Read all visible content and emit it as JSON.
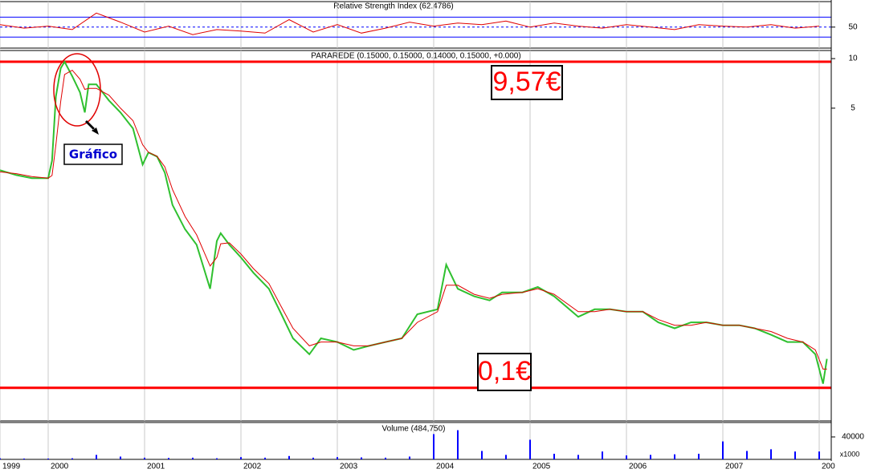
{
  "chart_data": [
    {
      "type": "line",
      "title": "Relative Strength Index (62.4786)",
      "x": [
        1999.5,
        1999.75,
        2000,
        2000.25,
        2000.5,
        2000.75,
        2001,
        2001.25,
        2001.5,
        2001.75,
        2002,
        2002.25,
        2002.5,
        2002.75,
        2003,
        2003.25,
        2003.5,
        2003.75,
        2004,
        2004.25,
        2004.5,
        2004.75,
        2005,
        2005.25,
        2005.5,
        2005.75,
        2006,
        2006.25,
        2006.5,
        2006.75,
        2007,
        2007.25,
        2007.5,
        2007.75,
        2008
      ],
      "series": [
        {
          "color": "#e00000",
          "values": [
            55,
            48,
            52,
            45,
            78,
            60,
            40,
            52,
            35,
            45,
            42,
            38,
            65,
            40,
            55,
            38,
            48,
            60,
            52,
            58,
            55,
            62,
            50,
            58,
            52,
            48,
            55,
            50,
            45,
            55,
            52,
            50,
            55,
            48,
            52
          ]
        }
      ],
      "xlim": [
        1999.5,
        2008.125
      ],
      "ylim": [
        8,
        101
      ],
      "yticks": [
        50
      ],
      "levels": [
        70,
        30
      ],
      "level_color": "#0000ff"
    },
    {
      "type": "line",
      "title": "PARAREDE (0.15000, 0.15000, 0.14000, 0.15000, +0.000)",
      "log_scale": true,
      "x": [
        1999.5,
        1999.67,
        1999.83,
        2000,
        2000.04,
        2000.08,
        2000.13,
        2000.17,
        2000.25,
        2000.33,
        2000.38,
        2000.42,
        2000.5,
        2000.63,
        2000.75,
        2000.88,
        2000.98,
        2001.04,
        2001.13,
        2001.21,
        2001.29,
        2001.42,
        2001.54,
        2001.68,
        2001.75,
        2001.79,
        2001.88,
        2002,
        2002.13,
        2002.29,
        2002.42,
        2002.54,
        2002.71,
        2002.83,
        2003,
        2003.17,
        2003.33,
        2003.5,
        2003.67,
        2003.83,
        2004.04,
        2004.13,
        2004.25,
        2004.42,
        2004.58,
        2004.71,
        2004.92,
        2005.08,
        2005.25,
        2005.5,
        2005.67,
        2005.83,
        2006,
        2006.17,
        2006.33,
        2006.5,
        2006.67,
        2006.83,
        2007,
        2007.17,
        2007.33,
        2007.5,
        2007.67,
        2007.83,
        2007.96,
        2008.04,
        2008.08
      ],
      "series": [
        {
          "color": "#2fc02f",
          "values": [
            2.1,
            1.96,
            1.88,
            1.88,
            2.4,
            5.9,
            8.74,
            9.57,
            7.81,
            6.24,
            4.71,
            6.98,
            6.98,
            5.57,
            4.71,
            3.76,
            2.27,
            2.69,
            2.54,
            2.03,
            1.29,
            0.92,
            0.74,
            0.4,
            0.78,
            0.87,
            0.74,
            0.62,
            0.5,
            0.4,
            0.28,
            0.2,
            0.16,
            0.2,
            0.19,
            0.17,
            0.18,
            0.19,
            0.2,
            0.28,
            0.3,
            0.56,
            0.4,
            0.36,
            0.34,
            0.38,
            0.38,
            0.41,
            0.36,
            0.27,
            0.3,
            0.3,
            0.29,
            0.29,
            0.25,
            0.23,
            0.25,
            0.25,
            0.24,
            0.24,
            0.23,
            0.21,
            0.19,
            0.19,
            0.16,
            0.106,
            0.15
          ]
        },
        {
          "color": "#e00000",
          "values": [
            2.05,
            2.0,
            1.92,
            1.88,
            1.95,
            3.0,
            5.5,
            8.0,
            8.5,
            7.5,
            6.5,
            6.6,
            6.6,
            6.0,
            5.0,
            4.2,
            3.0,
            2.7,
            2.55,
            2.2,
            1.6,
            1.1,
            0.85,
            0.55,
            0.62,
            0.75,
            0.76,
            0.65,
            0.53,
            0.43,
            0.31,
            0.23,
            0.18,
            0.19,
            0.19,
            0.18,
            0.18,
            0.19,
            0.2,
            0.25,
            0.29,
            0.42,
            0.42,
            0.37,
            0.35,
            0.37,
            0.38,
            0.4,
            0.37,
            0.29,
            0.29,
            0.3,
            0.29,
            0.29,
            0.26,
            0.24,
            0.24,
            0.25,
            0.24,
            0.24,
            0.23,
            0.22,
            0.2,
            0.19,
            0.17,
            0.13,
            0.13
          ]
        }
      ],
      "xlim": [
        1999.5,
        2008.125
      ],
      "ylim": [
        0.063,
        11.2
      ],
      "yticks": [
        10,
        5
      ],
      "reference_lines": [
        9.57,
        0.1
      ],
      "reference_color": "#ff0000",
      "annotations": [
        "9,57€",
        "0,1€",
        "Gráfico"
      ]
    },
    {
      "type": "bar",
      "title": "Volume (484,750)",
      "unit_label": "x1000",
      "x": [
        1999.5,
        1999.75,
        2000,
        2000.25,
        2000.5,
        2000.75,
        2001,
        2001.25,
        2001.5,
        2001.75,
        2002,
        2002.25,
        2002.5,
        2002.75,
        2003,
        2003.25,
        2003.5,
        2003.75,
        2004,
        2004.25,
        2004.5,
        2004.75,
        2005,
        2005.25,
        2005.5,
        2005.75,
        2006,
        2006.25,
        2006.5,
        2006.75,
        2007,
        2007.25,
        2007.5,
        2007.75,
        2008
      ],
      "values": [
        2000,
        1500,
        1500,
        2000,
        8000,
        5000,
        3000,
        2500,
        3000,
        2000,
        4000,
        3000,
        6000,
        3000,
        4000,
        3500,
        3000,
        5000,
        45000,
        52000,
        15000,
        8000,
        35000,
        10000,
        8000,
        14000,
        7000,
        8000,
        9000,
        10000,
        32000,
        15000,
        18000,
        14000,
        14000
      ],
      "color": "#0000ff",
      "xlim": [
        1999.5,
        2008.125
      ],
      "ylim": [
        0,
        65700
      ],
      "yticks": [
        40000
      ],
      "xticks": [
        {
          "value": 1999.5,
          "label": "1999"
        },
        2000,
        2001,
        2002,
        2003,
        2004,
        2005,
        2006,
        2007,
        {
          "value": 2008,
          "label": "200"
        }
      ]
    }
  ]
}
